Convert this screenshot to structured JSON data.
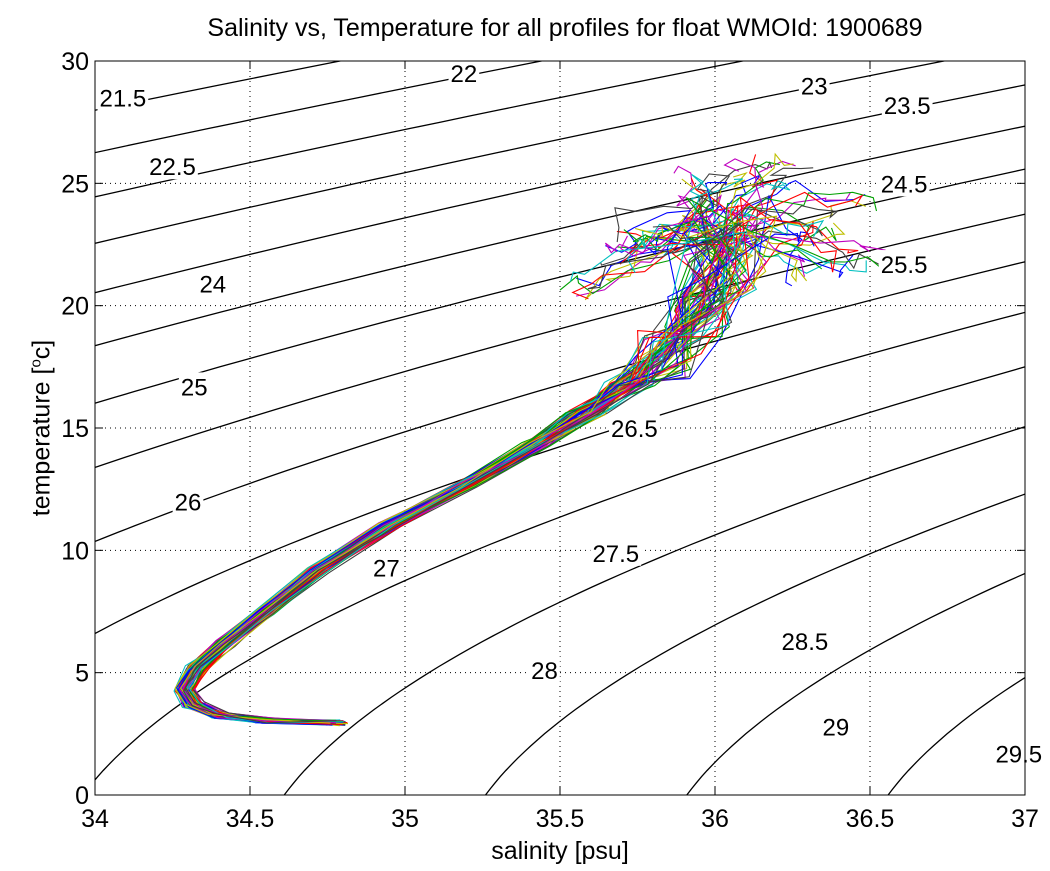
{
  "chart_data": {
    "type": "line",
    "title": "Salinity vs, Temperature for all profiles for float WMOId: 1900689",
    "xlabel": "salinity [psu]",
    "ylabel": "temperature [°c]",
    "ylabel_main": "temperature [",
    "ylabel_sup": "o",
    "ylabel_end": "c]",
    "xlim": [
      34,
      37
    ],
    "ylim": [
      0,
      30
    ],
    "xticks": [
      34,
      34.5,
      35,
      35.5,
      36,
      36.5,
      37
    ],
    "yticks": [
      0,
      5,
      10,
      15,
      20,
      25,
      30
    ],
    "xtick_labels": [
      "34",
      "34.5",
      "35",
      "35.5",
      "36",
      "36.5",
      "37"
    ],
    "ytick_labels": [
      "0",
      "5",
      "10",
      "15",
      "20",
      "25",
      "30"
    ],
    "grid": true,
    "grid_style": "dotted",
    "density_isolines": {
      "values": [
        21.5,
        22,
        22.5,
        23,
        23.5,
        24,
        24.5,
        25,
        25.5,
        26,
        26.5,
        27,
        27.5,
        28,
        28.5,
        29,
        29.5
      ],
      "labels": [
        {
          "text": "21.5",
          "s": 34.09,
          "t": 28.5
        },
        {
          "text": "22",
          "s": 35.19,
          "t": 29.5
        },
        {
          "text": "22.5",
          "s": 34.25,
          "t": 25.7
        },
        {
          "text": "23",
          "s": 36.32,
          "t": 29.0
        },
        {
          "text": "23.5",
          "s": 36.62,
          "t": 28.2
        },
        {
          "text": "24",
          "s": 34.38,
          "t": 20.9
        },
        {
          "text": "24.5",
          "s": 36.61,
          "t": 25.0
        },
        {
          "text": "25",
          "s": 34.32,
          "t": 16.7
        },
        {
          "text": "25.5",
          "s": 36.61,
          "t": 21.7
        },
        {
          "text": "26",
          "s": 34.3,
          "t": 12.0
        },
        {
          "text": "26.5",
          "s": 35.74,
          "t": 15.0
        },
        {
          "text": "27",
          "s": 34.94,
          "t": 9.3
        },
        {
          "text": "27.5",
          "s": 35.68,
          "t": 9.9
        },
        {
          "text": "28",
          "s": 35.45,
          "t": 5.1
        },
        {
          "text": "28.5",
          "s": 36.29,
          "t": 6.3
        },
        {
          "text": "29",
          "s": 36.39,
          "t": 2.8
        },
        {
          "text": "29.5",
          "s": 36.98,
          "t": 1.7
        }
      ],
      "color": "#000000"
    },
    "series_colors": [
      "#0000ff",
      "#00a000",
      "#ff0000",
      "#00bfbf",
      "#bf00bf",
      "#bfbf00",
      "#404040"
    ],
    "profile_path": [
      {
        "s": 34.78,
        "t": 2.95
      },
      {
        "s": 34.55,
        "t": 3.05
      },
      {
        "s": 34.4,
        "t": 3.25
      },
      {
        "s": 34.32,
        "t": 3.7
      },
      {
        "s": 34.29,
        "t": 4.3
      },
      {
        "s": 34.33,
        "t": 5.2
      },
      {
        "s": 34.42,
        "t": 6.2
      },
      {
        "s": 34.55,
        "t": 7.5
      },
      {
        "s": 34.72,
        "t": 9.2
      },
      {
        "s": 34.95,
        "t": 11.0
      },
      {
        "s": 35.2,
        "t": 12.7
      },
      {
        "s": 35.42,
        "t": 14.3
      },
      {
        "s": 35.58,
        "t": 15.6
      },
      {
        "s": 35.72,
        "t": 16.8
      },
      {
        "s": 35.85,
        "t": 18.0
      },
      {
        "s": 35.95,
        "t": 19.5
      },
      {
        "s": 36.0,
        "t": 21.5
      },
      {
        "s": 36.05,
        "t": 23.5
      }
    ],
    "profile_count": 70,
    "surface_extremes": [
      {
        "s": 35.52,
        "t": 20.0
      },
      {
        "s": 35.62,
        "t": 21.6
      },
      {
        "s": 35.71,
        "t": 22.6
      },
      {
        "s": 35.85,
        "t": 23.1
      },
      {
        "s": 35.96,
        "t": 25.0
      },
      {
        "s": 36.1,
        "t": 26.0
      },
      {
        "s": 36.25,
        "t": 26.0
      },
      {
        "s": 36.5,
        "t": 24.2
      },
      {
        "s": 36.42,
        "t": 22.9
      },
      {
        "s": 36.55,
        "t": 21.7
      },
      {
        "s": 36.36,
        "t": 21.2
      }
    ]
  }
}
